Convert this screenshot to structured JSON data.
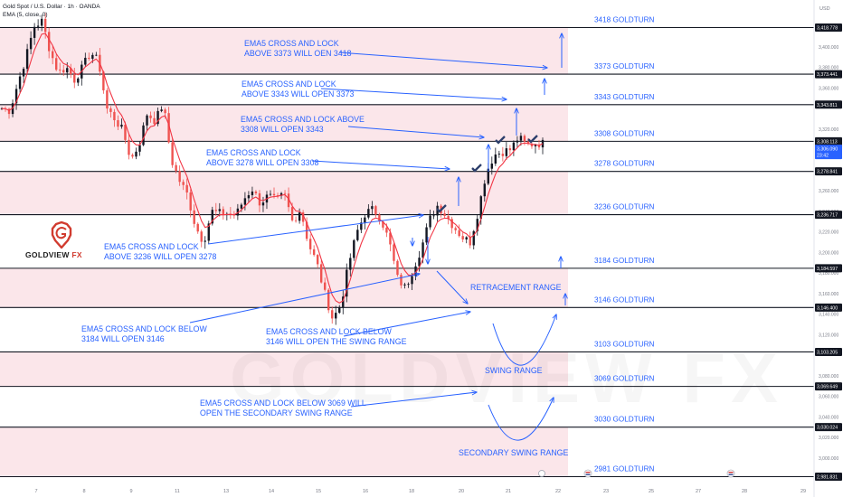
{
  "header": {
    "symbol_line": "Gold Spot / U.S. Dollar · 1h · OANDA",
    "indicator_line": "EMA (5, close, 0)"
  },
  "brand": {
    "name": "GOLDVIEW",
    "suffix": "FX",
    "watermark": "GOLDVIEW FX"
  },
  "colors": {
    "zone_fill": "#fbe6ea",
    "level_line": "#131722",
    "annotation_blue": "#2962ff",
    "ema_red": "#f23645",
    "candle_up": "#131722",
    "candle_down": "#ef5350",
    "label_red": "#e53935",
    "axis_text": "#787b86"
  },
  "chart_data": {
    "type": "candlestick",
    "symbol": "XAUUSD",
    "timeframe": "1h",
    "y_axis_label": "USD",
    "y_range": [
      2975,
      3432
    ],
    "grid": false,
    "x_ticks": [
      "7",
      "8",
      "9",
      "11",
      "13",
      "14",
      "15",
      "16",
      "18",
      "20",
      "21",
      "22",
      "23",
      "25",
      "27",
      "28",
      "29"
    ],
    "y_ticks": [
      "3,400.000",
      "3,380.000",
      "3,360.000",
      "3,320.000",
      "3,260.000",
      "3,240.000",
      "3,220.000",
      "3,200.000",
      "3,180.000",
      "3,160.000",
      "3,140.000",
      "3,120.000",
      "3,080.000",
      "3,060.000",
      "3,040.000",
      "3,020.000",
      "3,000.000"
    ],
    "price_labels": [
      "3,418.778",
      "3,373.441",
      "3,343.811",
      "3,308.113",
      "3,278.841",
      "3,236.717",
      "3,184.597",
      "3,146.400",
      "3,103.205",
      "3,069.649",
      "3,030.024",
      "2,981.831"
    ],
    "current_price": "3,306.090",
    "countdown": "23:42",
    "goldturn_levels": [
      {
        "value": 3418.778,
        "label": "3418 GOLDTURN"
      },
      {
        "value": 3373.441,
        "label": "3373 GOLDTURN"
      },
      {
        "value": 3343.811,
        "label": "3343 GOLDTURN"
      },
      {
        "value": 3308.113,
        "label": "3308 GOLDTURN"
      },
      {
        "value": 3278.841,
        "label": "3278 GOLDTURN"
      },
      {
        "value": 3236.717,
        "label": "3236 GOLDTURN"
      },
      {
        "value": 3184.597,
        "label": "3184 GOLDTURN"
      },
      {
        "value": 3146.4,
        "label": "3146 GOLDTURN"
      },
      {
        "value": 3103.205,
        "label": "3103 GOLDTURN"
      },
      {
        "value": 3069.649,
        "label": "3069 GOLDTURN"
      },
      {
        "value": 3030.024,
        "label": "3030 GOLDTURN"
      },
      {
        "value": 2981.831,
        "label": "2981 GOLDTURN"
      }
    ],
    "annotations": [
      {
        "lines": [
          "EMA5 CROSS AND LOCK",
          "ABOVE 3373 WILL OEN 3418"
        ]
      },
      {
        "lines": [
          "EMA5 CROSS AND LOCK",
          "ABOVE 3343 WILL OPEN 3373"
        ]
      },
      {
        "lines": [
          "EMA5 CROSS AND LOCK ABOVE",
          "3308 WILL OPEN 3343"
        ]
      },
      {
        "lines": [
          "EMA5 CROSS AND LOCK",
          "ABOVE 3278 WILL OPEN 3308"
        ]
      },
      {
        "lines": [
          "EMA5 CROSS AND LOCK",
          "ABOVE 3236 WILL OPEN 3278"
        ]
      },
      {
        "lines": [
          "EMA5 CROSS AND LOCK BELOW",
          "3184 WILL OPEN 3146"
        ]
      },
      {
        "lines": [
          "EMA5 CROSS AND LOCK BELOW",
          "3146 WILL OPEN THE SWING RANGE"
        ]
      },
      {
        "lines": [
          "EMA5 CROSS AND LOCK BELOW 3069 WILL",
          "OPEN THE SECONDARY SWING RANGE"
        ]
      },
      {
        "lines": [
          "RETRACEMENT RANGE"
        ]
      },
      {
        "lines": [
          "SWING RANGE"
        ]
      },
      {
        "lines": [
          "SECONDARY SWING RANGE"
        ]
      }
    ],
    "price_path": [
      [
        3340,
        3338
      ],
      [
        3365,
        3390
      ],
      [
        3420,
        3425
      ],
      [
        3395,
        3375
      ],
      [
        3380,
        3368
      ],
      [
        3380,
        3395
      ],
      [
        3385,
        3340
      ],
      [
        3330,
        3318
      ],
      [
        3290,
        3305
      ],
      [
        3335,
        3328
      ],
      [
        3345,
        3290
      ],
      [
        3270,
        3256
      ],
      [
        3225,
        3210
      ],
      [
        3240,
        3238
      ],
      [
        3238,
        3236
      ],
      [
        3252,
        3262
      ],
      [
        3248,
        3255
      ],
      [
        3250,
        3257
      ],
      [
        3230,
        3242
      ],
      [
        3208,
        3190
      ],
      [
        3160,
        3135
      ],
      [
        3150,
        3190
      ],
      [
        3220,
        3238
      ],
      [
        3242,
        3232
      ],
      [
        3210,
        3175
      ],
      [
        3165,
        3185
      ],
      [
        3205,
        3232
      ],
      [
        3246,
        3236
      ],
      [
        3225,
        3215
      ],
      [
        3210,
        3240
      ],
      [
        3278,
        3295
      ],
      [
        3298,
        3300
      ],
      [
        3312,
        3304
      ],
      [
        3306,
        3306
      ]
    ]
  }
}
